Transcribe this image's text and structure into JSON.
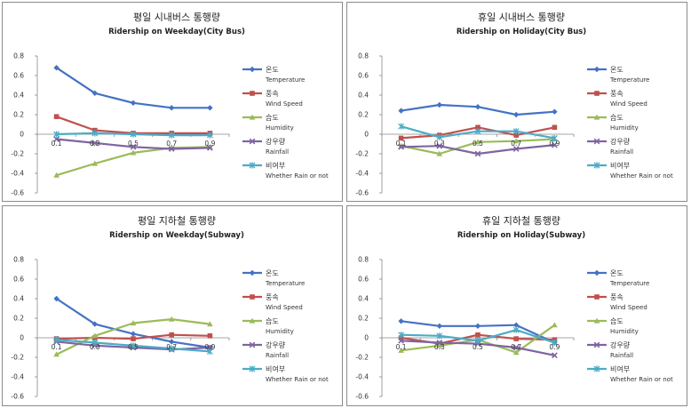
{
  "chart_data": [
    {
      "type": "line",
      "title": "평일 시내버스 통행량",
      "subtitle": "Ridership on Weekday(City Bus)",
      "categories": [
        "0.1",
        "0.3",
        "0.5",
        "0.7",
        "0.9"
      ],
      "ylim": [
        -0.6,
        0.8
      ],
      "yticks": [
        "0.8",
        "0.6",
        "0.4",
        "0.2",
        "0",
        "-0.2",
        "-0.4",
        "-0.6"
      ],
      "series": [
        {
          "name": "온도",
          "name_en": "Temperature",
          "color": "#4472c4",
          "marker": "diamond",
          "values": [
            0.68,
            0.42,
            0.32,
            0.27,
            0.27
          ]
        },
        {
          "name": "풍속",
          "name_en": "Wind Speed",
          "color": "#c0504d",
          "marker": "square",
          "values": [
            0.18,
            0.04,
            0.01,
            0.01,
            0.01
          ]
        },
        {
          "name": "습도",
          "name_en": "Humidity",
          "color": "#9bbb59",
          "marker": "triangle",
          "values": [
            -0.42,
            -0.3,
            -0.19,
            -0.14,
            -0.13
          ]
        },
        {
          "name": "강우량",
          "name_en": "Rainfall",
          "color": "#8064a2",
          "marker": "x",
          "values": [
            -0.05,
            -0.09,
            -0.13,
            -0.15,
            -0.14
          ]
        },
        {
          "name": "비여부",
          "name_en": "Whether Rain or not",
          "color": "#4bacc6",
          "marker": "star",
          "values": [
            0.0,
            0.01,
            0.0,
            -0.01,
            -0.01
          ]
        }
      ]
    },
    {
      "type": "line",
      "title": "휴일 시내버스 통행량",
      "subtitle": "Ridership on Holiday(City Bus)",
      "categories": [
        "0.1",
        "0.3",
        "0.5",
        "0.7",
        "0.9"
      ],
      "ylim": [
        -0.6,
        0.8
      ],
      "yticks": [
        "0.8",
        "0.6",
        "0.4",
        "0.2",
        "0",
        "-0.2",
        "-0.4",
        "-0.6"
      ],
      "series": [
        {
          "name": "온도",
          "name_en": "Temperature",
          "color": "#4472c4",
          "marker": "diamond",
          "values": [
            0.24,
            0.3,
            0.28,
            0.2,
            0.23
          ]
        },
        {
          "name": "풍속",
          "name_en": "Wind Speed",
          "color": "#c0504d",
          "marker": "square",
          "values": [
            -0.04,
            -0.01,
            0.07,
            -0.01,
            0.07
          ]
        },
        {
          "name": "습도",
          "name_en": "Humidity",
          "color": "#9bbb59",
          "marker": "triangle",
          "values": [
            -0.12,
            -0.2,
            -0.08,
            -0.07,
            -0.05
          ]
        },
        {
          "name": "강우량",
          "name_en": "Rainfall",
          "color": "#8064a2",
          "marker": "x",
          "values": [
            -0.13,
            -0.12,
            -0.2,
            -0.15,
            -0.11
          ]
        },
        {
          "name": "비여부",
          "name_en": "Whether Rain or not",
          "color": "#4bacc6",
          "marker": "star",
          "values": [
            0.08,
            -0.03,
            0.03,
            0.03,
            -0.04
          ]
        }
      ]
    },
    {
      "type": "line",
      "title": "평일 지하철 통행량",
      "subtitle": "Ridership on Weekday(Subway)",
      "categories": [
        "0.1",
        "0.3",
        "0.5",
        "0.7",
        "0.9"
      ],
      "ylim": [
        -0.6,
        0.8
      ],
      "yticks": [
        "0.8",
        "0.6",
        "0.4",
        "0.2",
        "0",
        "-0.2",
        "-0.4",
        "-0.6"
      ],
      "series": [
        {
          "name": "온도",
          "name_en": "Temperature",
          "color": "#4472c4",
          "marker": "diamond",
          "values": [
            0.4,
            0.14,
            0.04,
            -0.04,
            -0.1
          ]
        },
        {
          "name": "풍속",
          "name_en": "Wind Speed",
          "color": "#c0504d",
          "marker": "square",
          "values": [
            -0.01,
            0.0,
            -0.01,
            0.03,
            0.02
          ]
        },
        {
          "name": "습도",
          "name_en": "Humidity",
          "color": "#9bbb59",
          "marker": "triangle",
          "values": [
            -0.17,
            0.02,
            0.15,
            0.19,
            0.14
          ]
        },
        {
          "name": "강우량",
          "name_en": "Rainfall",
          "color": "#8064a2",
          "marker": "x",
          "values": [
            -0.04,
            -0.08,
            -0.1,
            -0.12,
            -0.1
          ]
        },
        {
          "name": "비여부",
          "name_en": "Whether Rain or not",
          "color": "#4bacc6",
          "marker": "star",
          "values": [
            -0.02,
            -0.05,
            -0.08,
            -0.11,
            -0.14
          ]
        }
      ]
    },
    {
      "type": "line",
      "title": "휴일 지하철 통행량",
      "subtitle": "Ridership on Holiday(Subway)",
      "categories": [
        "0.1",
        "0.3",
        "0.5",
        "0.7",
        "0.9"
      ],
      "ylim": [
        -0.6,
        0.8
      ],
      "yticks": [
        "0.8",
        "0.6",
        "0.4",
        "0.2",
        "0",
        "-0.2",
        "-0.4",
        "-0.6"
      ],
      "series": [
        {
          "name": "온도",
          "name_en": "Temperature",
          "color": "#4472c4",
          "marker": "diamond",
          "values": [
            0.17,
            0.12,
            0.12,
            0.13,
            -0.05
          ]
        },
        {
          "name": "풍속",
          "name_en": "Wind Speed",
          "color": "#c0504d",
          "marker": "square",
          "values": [
            0.0,
            -0.06,
            0.03,
            -0.01,
            -0.02
          ]
        },
        {
          "name": "습도",
          "name_en": "Humidity",
          "color": "#9bbb59",
          "marker": "triangle",
          "values": [
            -0.13,
            -0.08,
            -0.02,
            -0.15,
            0.13
          ]
        },
        {
          "name": "강우량",
          "name_en": "Rainfall",
          "color": "#8064a2",
          "marker": "x",
          "values": [
            -0.03,
            -0.05,
            -0.06,
            -0.1,
            -0.18
          ]
        },
        {
          "name": "비여부",
          "name_en": "Whether Rain or not",
          "color": "#4bacc6",
          "marker": "star",
          "values": [
            0.03,
            0.02,
            -0.03,
            0.08,
            -0.05
          ]
        }
      ]
    }
  ]
}
